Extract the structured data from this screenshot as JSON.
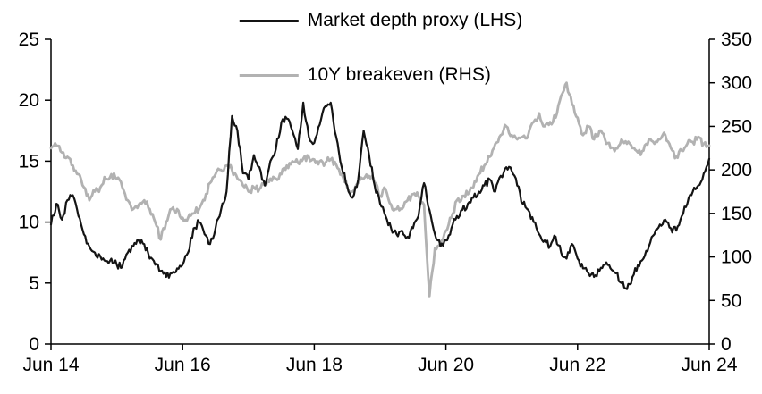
{
  "legend": {
    "items": [
      {
        "label": "Market depth proxy (LHS)",
        "color": "#141414"
      },
      {
        "label": "10Y breakeven (RHS)",
        "color": "#b2b2b2"
      }
    ]
  },
  "chart_data": {
    "type": "line",
    "title": "",
    "x_start": "2014-06",
    "x_step_months": 1,
    "grid": false,
    "legend_position": "top-center",
    "x_ticks": [
      {
        "index": 0,
        "label": "Jun 14"
      },
      {
        "index": 24,
        "label": "Jun 16"
      },
      {
        "index": 48,
        "label": "Jun 18"
      },
      {
        "index": 72,
        "label": "Jun 20"
      },
      {
        "index": 96,
        "label": "Jun 22"
      },
      {
        "index": 120,
        "label": "Jun 24"
      }
    ],
    "axes": {
      "left": {
        "min": 0,
        "max": 25,
        "ticks": [
          0,
          5,
          10,
          15,
          20,
          25
        ]
      },
      "right": {
        "min": 0,
        "max": 350,
        "ticks": [
          0,
          50,
          100,
          150,
          200,
          250,
          300,
          350
        ]
      }
    },
    "series": [
      {
        "name": "Market depth proxy (LHS)",
        "axis": "left",
        "color": "#141414",
        "width": 2.2,
        "values": [
          9.8,
          11.5,
          10.2,
          11.8,
          12.2,
          10.5,
          9.0,
          8.0,
          7.5,
          7.2,
          6.8,
          7.0,
          6.5,
          6.3,
          7.5,
          8.0,
          8.5,
          8.2,
          7.0,
          6.5,
          6.0,
          5.5,
          5.8,
          6.2,
          6.5,
          7.5,
          9.5,
          10.0,
          9.0,
          8.2,
          9.5,
          11.0,
          12.5,
          18.7,
          17.5,
          14.0,
          13.5,
          15.5,
          14.5,
          13.0,
          15.0,
          16.0,
          18.2,
          18.5,
          17.5,
          16.0,
          19.8,
          17.0,
          16.5,
          18.0,
          19.5,
          19.8,
          17.0,
          14.5,
          13.0,
          12.0,
          13.5,
          17.5,
          15.5,
          13.0,
          11.5,
          10.5,
          9.5,
          9.0,
          9.3,
          8.8,
          9.5,
          10.5,
          13.2,
          11.0,
          9.0,
          8.0,
          8.5,
          9.5,
          10.5,
          11.0,
          11.5,
          12.0,
          12.5,
          13.0,
          13.5,
          12.5,
          13.8,
          14.5,
          14.2,
          13.0,
          11.5,
          11.0,
          10.0,
          9.0,
          8.5,
          8.0,
          8.8,
          7.5,
          7.0,
          8.2,
          7.0,
          6.2,
          5.8,
          5.5,
          6.0,
          6.5,
          6.2,
          5.8,
          5.0,
          4.5,
          5.5,
          6.5,
          7.0,
          8.0,
          9.0,
          9.8,
          10.2,
          9.5,
          9.3,
          10.5,
          11.5,
          12.5,
          13.0,
          14.0,
          15.2
        ]
      },
      {
        "name": "10Y breakeven (RHS)",
        "axis": "right",
        "color": "#b2b2b2",
        "width": 2.8,
        "values": [
          225,
          228,
          220,
          215,
          205,
          195,
          180,
          165,
          175,
          180,
          190,
          195,
          190,
          180,
          165,
          155,
          160,
          165,
          155,
          140,
          120,
          140,
          155,
          155,
          145,
          145,
          150,
          155,
          165,
          185,
          195,
          200,
          205,
          200,
          190,
          182,
          175,
          180,
          178,
          185,
          190,
          190,
          195,
          205,
          210,
          208,
          213,
          215,
          212,
          210,
          208,
          212,
          206,
          195,
          180,
          175,
          185,
          190,
          193,
          185,
          170,
          178,
          160,
          155,
          155,
          165,
          172,
          170,
          160,
          55,
          110,
          115,
          130,
          145,
          165,
          170,
          172,
          180,
          195,
          205,
          215,
          230,
          240,
          250,
          240,
          235,
          238,
          240,
          255,
          265,
          250,
          255,
          260,
          285,
          300,
          275,
          260,
          240,
          250,
          235,
          245,
          235,
          225,
          225,
          235,
          230,
          225,
          220,
          222,
          235,
          230,
          235,
          240,
          225,
          215,
          222,
          230,
          232,
          238,
          230,
          228
        ]
      }
    ]
  }
}
